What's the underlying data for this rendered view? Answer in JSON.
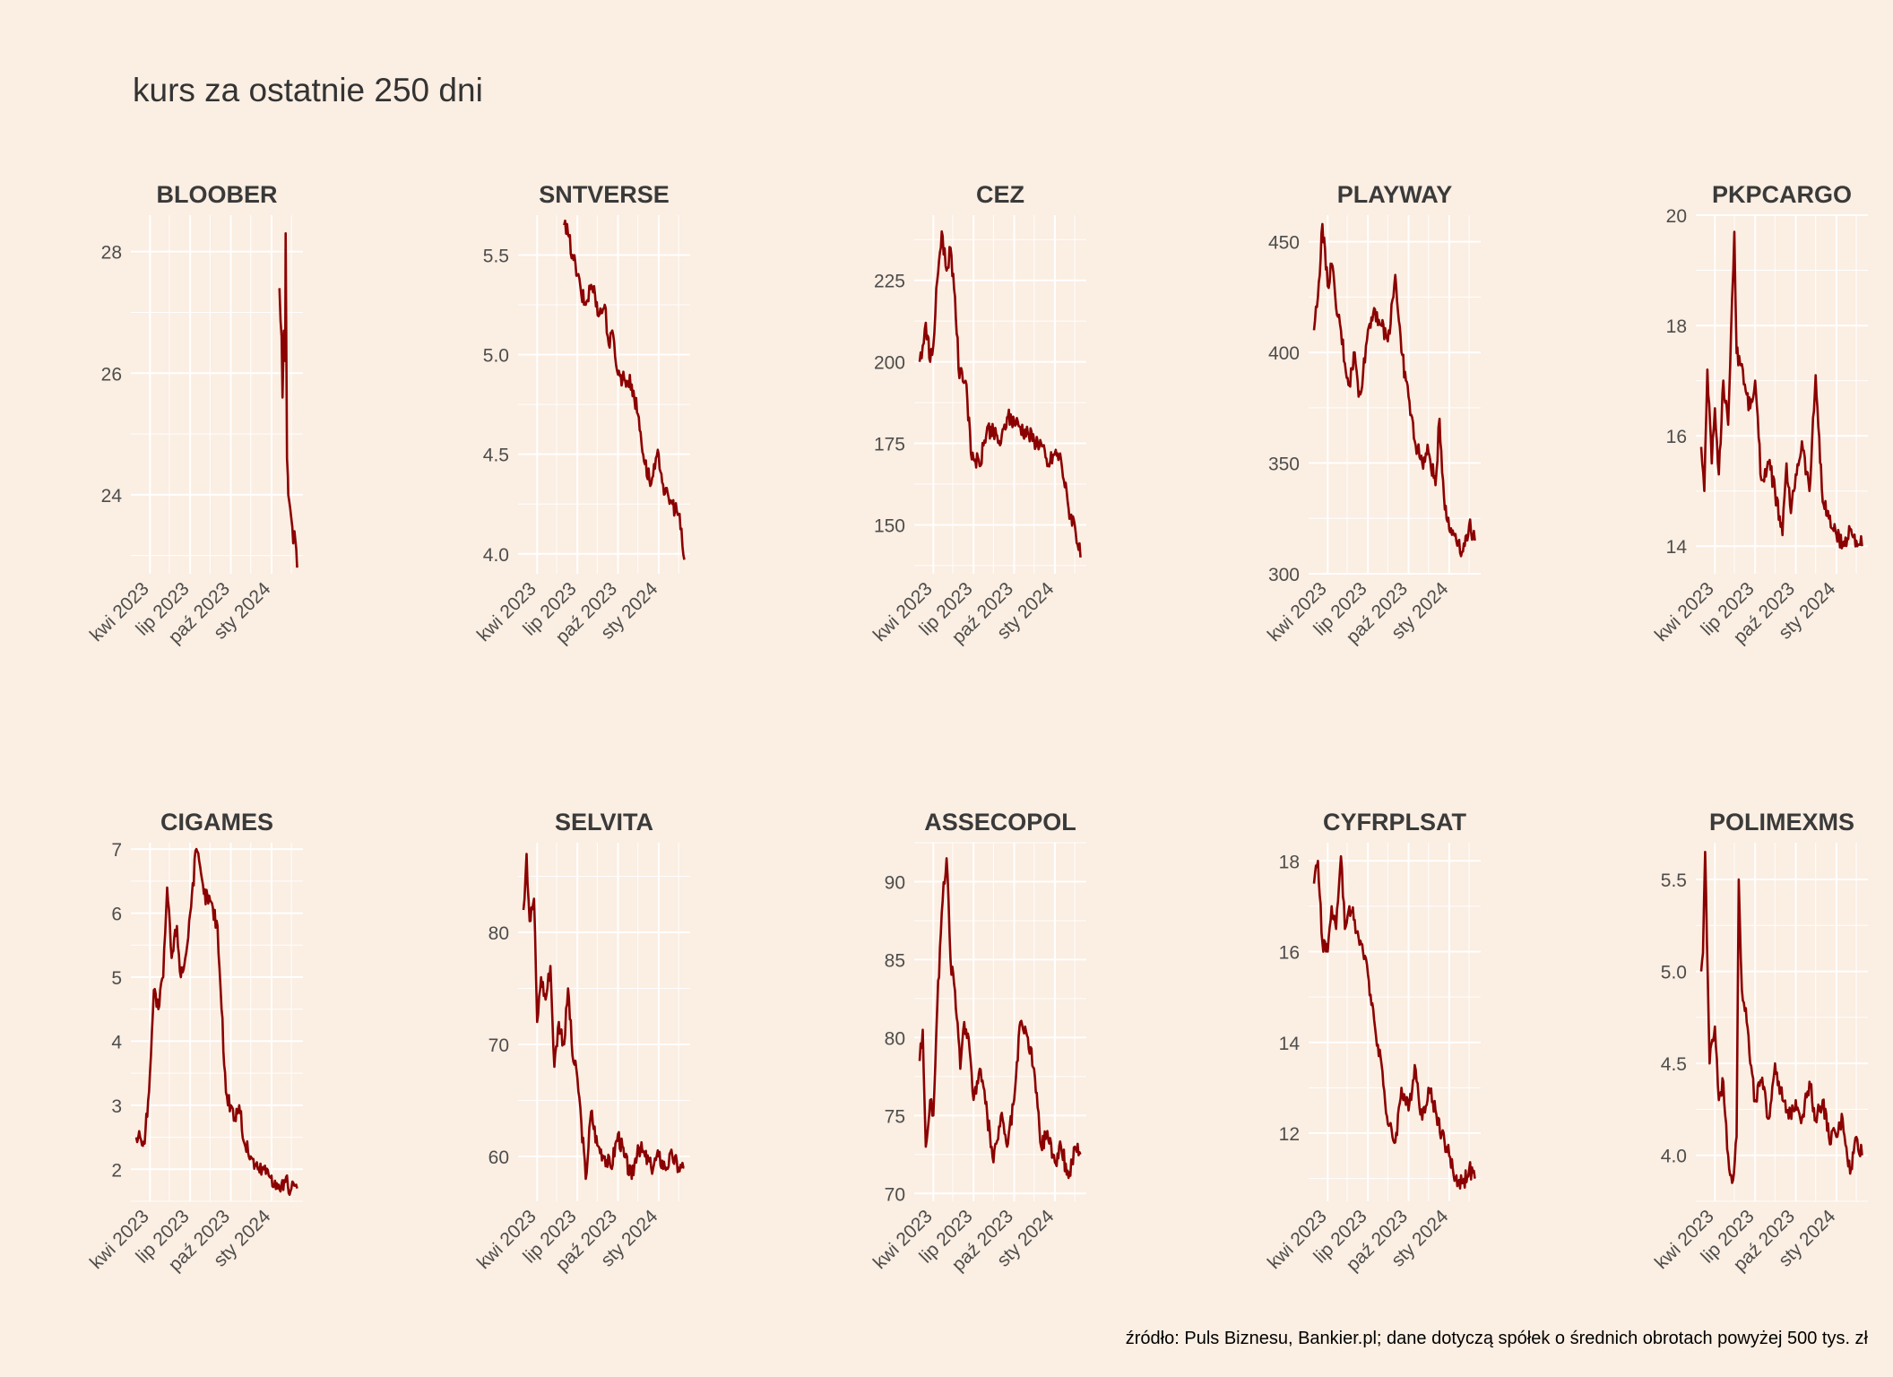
{
  "title": "kurs za ostatnie 250 dni",
  "caption": "źródło: Puls Biznesu, Bankier.pl; dane dotyczą spółek o średnich obrotach powyżej 500 tys. zł",
  "colors": {
    "background": "#FBEEE2",
    "grid": "#FFFFFF",
    "line": "#8B0000",
    "text": "#4D4D4D"
  },
  "chart_data": [
    {
      "type": "line",
      "title": "BLOOBER",
      "x_ticks": [
        "kwi 2023",
        "lip 2023",
        "paź 2023",
        "sty 2024"
      ],
      "y_ticks": [
        24,
        26,
        28
      ],
      "ylim": [
        22.7,
        28.6
      ],
      "x_range": [
        "2023-03-01",
        "2024-02-29"
      ],
      "series": [
        {
          "x": [
            "2024-01-19",
            "2024-01-24",
            "2024-01-26",
            "2024-01-29",
            "2024-02-01",
            "2024-02-02",
            "2024-02-05",
            "2024-02-07",
            "2024-02-08",
            "2024-02-12",
            "2024-02-15",
            "2024-02-19",
            "2024-02-22",
            "2024-02-28"
          ],
          "y": [
            27.4,
            26.6,
            25.6,
            26.7,
            26.2,
            28.3,
            24.6,
            24.3,
            24.0,
            23.8,
            23.6,
            23.2,
            23.4,
            22.8
          ]
        }
      ]
    },
    {
      "type": "line",
      "title": "SNTVERSE",
      "x_ticks": [
        "kwi 2023",
        "lip 2023",
        "paź 2023",
        "sty 2024"
      ],
      "y_ticks": [
        4.0,
        4.5,
        5.0,
        5.5
      ],
      "ylim": [
        3.9,
        5.7
      ],
      "x_range": [
        "2023-03-01",
        "2024-02-29"
      ],
      "series": [
        {
          "x": [
            "2023-06-01",
            "2023-06-10",
            "2023-06-20",
            "2023-07-01",
            "2023-07-10",
            "2023-07-20",
            "2023-08-01",
            "2023-08-10",
            "2023-08-20",
            "2023-09-01",
            "2023-09-10",
            "2023-09-20",
            "2023-10-01",
            "2023-10-15",
            "2023-11-01",
            "2023-11-15",
            "2023-12-01",
            "2023-12-15",
            "2024-01-01",
            "2024-01-15",
            "2024-02-01",
            "2024-02-15",
            "2024-02-28"
          ],
          "y": [
            5.65,
            5.6,
            5.5,
            5.4,
            5.3,
            5.25,
            5.35,
            5.3,
            5.2,
            5.25,
            5.05,
            5.1,
            4.9,
            4.88,
            4.85,
            4.7,
            4.45,
            4.35,
            4.5,
            4.3,
            4.25,
            4.2,
            3.97
          ]
        }
      ]
    },
    {
      "type": "line",
      "title": "CEZ",
      "x_ticks": [
        "kwi 2023",
        "lip 2023",
        "paź 2023",
        "sty 2024"
      ],
      "y_ticks": [
        150,
        175,
        200,
        225
      ],
      "ylim": [
        135,
        245
      ],
      "x_range": [
        "2023-03-01",
        "2024-02-29"
      ],
      "series": [
        {
          "x": [
            "2023-03-01",
            "2023-03-08",
            "2023-03-15",
            "2023-03-25",
            "2023-04-01",
            "2023-04-10",
            "2023-04-20",
            "2023-05-01",
            "2023-05-10",
            "2023-05-20",
            "2023-05-30",
            "2023-06-05",
            "2023-06-15",
            "2023-06-25",
            "2023-07-05",
            "2023-07-15",
            "2023-08-01",
            "2023-08-15",
            "2023-09-01",
            "2023-09-15",
            "2023-10-01",
            "2023-10-15",
            "2023-11-01",
            "2023-11-15",
            "2023-12-01",
            "2023-12-15",
            "2024-01-01",
            "2024-01-15",
            "2024-02-01",
            "2024-02-15",
            "2024-02-28"
          ],
          "y": [
            200,
            205,
            212,
            200,
            205,
            225,
            240,
            228,
            235,
            220,
            195,
            197,
            193,
            172,
            170,
            168,
            180,
            178,
            175,
            183,
            182,
            180,
            178,
            176,
            175,
            168,
            172,
            170,
            155,
            150,
            140
          ]
        }
      ]
    },
    {
      "type": "line",
      "title": "PLAYWAY",
      "x_ticks": [
        "kwi 2023",
        "lip 2023",
        "paź 2023",
        "sty 2024"
      ],
      "y_ticks": [
        300,
        350,
        400,
        450
      ],
      "ylim": [
        300,
        462
      ],
      "x_range": [
        "2023-03-01",
        "2024-02-29"
      ],
      "series": [
        {
          "x": [
            "2023-03-01",
            "2023-03-10",
            "2023-03-20",
            "2023-04-01",
            "2023-04-10",
            "2023-04-20",
            "2023-05-01",
            "2023-05-10",
            "2023-05-20",
            "2023-06-01",
            "2023-06-10",
            "2023-06-20",
            "2023-07-01",
            "2023-07-15",
            "2023-08-01",
            "2023-08-15",
            "2023-09-01",
            "2023-09-15",
            "2023-10-01",
            "2023-10-15",
            "2023-11-01",
            "2023-11-15",
            "2023-12-01",
            "2023-12-10",
            "2023-12-20",
            "2024-01-01",
            "2024-01-15",
            "2024-02-01",
            "2024-02-15",
            "2024-02-28"
          ],
          "y": [
            410,
            425,
            458,
            430,
            440,
            420,
            410,
            395,
            385,
            400,
            380,
            390,
            410,
            420,
            412,
            405,
            435,
            400,
            380,
            360,
            350,
            355,
            340,
            370,
            335,
            320,
            318,
            310,
            322,
            315
          ]
        }
      ]
    },
    {
      "type": "line",
      "title": "PKPCARGO",
      "x_ticks": [
        "kwi 2023",
        "lip 2023",
        "paź 2023",
        "sty 2024"
      ],
      "y_ticks": [
        14,
        16,
        18,
        20
      ],
      "ylim": [
        13.5,
        20
      ],
      "x_range": [
        "2023-03-01",
        "2024-02-29"
      ],
      "series": [
        {
          "x": [
            "2023-03-01",
            "2023-03-08",
            "2023-03-15",
            "2023-03-25",
            "2023-04-01",
            "2023-04-10",
            "2023-04-20",
            "2023-05-01",
            "2023-05-10",
            "2023-05-15",
            "2023-05-20",
            "2023-06-01",
            "2023-06-10",
            "2023-06-20",
            "2023-07-01",
            "2023-07-15",
            "2023-08-01",
            "2023-08-15",
            "2023-09-01",
            "2023-09-10",
            "2023-09-20",
            "2023-10-01",
            "2023-10-15",
            "2023-11-01",
            "2023-11-15",
            "2023-12-01",
            "2023-12-15",
            "2024-01-01",
            "2024-01-15",
            "2024-02-01",
            "2024-02-15",
            "2024-02-28"
          ],
          "y": [
            15.8,
            15.0,
            17.2,
            15.5,
            16.5,
            15.3,
            17.0,
            16.2,
            18.5,
            19.7,
            17.5,
            17.3,
            16.8,
            16.5,
            17.0,
            15.2,
            15.5,
            15.0,
            14.2,
            15.5,
            14.6,
            15.3,
            15.9,
            15.0,
            17.1,
            14.8,
            14.5,
            14.2,
            14.0,
            14.3,
            14.1,
            14.0
          ]
        }
      ]
    },
    {
      "type": "line",
      "title": "CIGAMES",
      "x_ticks": [
        "kwi 2023",
        "lip 2023",
        "paź 2023",
        "sty 2024"
      ],
      "y_ticks": [
        2,
        3,
        4,
        5,
        6,
        7
      ],
      "ylim": [
        1.5,
        7.1
      ],
      "x_range": [
        "2023-03-01",
        "2024-02-29"
      ],
      "series": [
        {
          "x": [
            "2023-03-01",
            "2023-03-10",
            "2023-03-20",
            "2023-04-01",
            "2023-04-10",
            "2023-04-20",
            "2023-05-01",
            "2023-05-10",
            "2023-05-20",
            "2023-06-01",
            "2023-06-10",
            "2023-06-20",
            "2023-07-01",
            "2023-07-15",
            "2023-08-01",
            "2023-08-15",
            "2023-09-01",
            "2023-09-10",
            "2023-09-20",
            "2023-10-01",
            "2023-10-10",
            "2023-10-20",
            "2023-11-01",
            "2023-11-15",
            "2023-12-01",
            "2023-12-15",
            "2024-01-01",
            "2024-01-15",
            "2024-02-01",
            "2024-02-15",
            "2024-02-28"
          ],
          "y": [
            2.5,
            2.5,
            2.4,
            3.5,
            4.8,
            4.5,
            5.0,
            6.4,
            5.3,
            5.8,
            5.0,
            5.3,
            6.0,
            7.0,
            6.3,
            6.2,
            5.8,
            4.5,
            3.2,
            3.0,
            2.8,
            3.0,
            2.4,
            2.2,
            2.0,
            2.0,
            1.9,
            1.7,
            1.8,
            1.7,
            1.7
          ]
        }
      ]
    },
    {
      "type": "line",
      "title": "SELVITA",
      "x_ticks": [
        "kwi 2023",
        "lip 2023",
        "paź 2023",
        "sty 2024"
      ],
      "y_ticks": [
        60,
        70,
        80
      ],
      "ylim": [
        56,
        88
      ],
      "x_range": [
        "2023-03-01",
        "2024-02-29"
      ],
      "series": [
        {
          "x": [
            "2023-03-01",
            "2023-03-08",
            "2023-03-15",
            "2023-03-25",
            "2023-04-01",
            "2023-04-10",
            "2023-04-20",
            "2023-05-01",
            "2023-05-10",
            "2023-05-20",
            "2023-06-01",
            "2023-06-10",
            "2023-06-20",
            "2023-07-01",
            "2023-07-10",
            "2023-07-20",
            "2023-08-01",
            "2023-08-15",
            "2023-09-01",
            "2023-09-15",
            "2023-10-01",
            "2023-10-15",
            "2023-11-01",
            "2023-11-15",
            "2023-12-01",
            "2023-12-15",
            "2024-01-01",
            "2024-01-15",
            "2024-02-01",
            "2024-02-15",
            "2024-02-28"
          ],
          "y": [
            82,
            87,
            81,
            83,
            72,
            76,
            74,
            77,
            68,
            72,
            70,
            75,
            69,
            67,
            63,
            58,
            64,
            61,
            60,
            59,
            62,
            60,
            58,
            61,
            60,
            59,
            60,
            59,
            60,
            59,
            59
          ]
        }
      ]
    },
    {
      "type": "line",
      "title": "ASSECOPOL",
      "x_ticks": [
        "kwi 2023",
        "lip 2023",
        "paź 2023",
        "sty 2024"
      ],
      "y_ticks": [
        70,
        75,
        80,
        85,
        90
      ],
      "ylim": [
        69.5,
        92.5
      ],
      "x_range": [
        "2023-03-01",
        "2024-02-29"
      ],
      "series": [
        {
          "x": [
            "2023-03-01",
            "2023-03-08",
            "2023-03-15",
            "2023-03-25",
            "2023-04-01",
            "2023-04-10",
            "2023-04-20",
            "2023-05-01",
            "2023-05-10",
            "2023-05-20",
            "2023-06-01",
            "2023-06-10",
            "2023-06-20",
            "2023-07-01",
            "2023-07-15",
            "2023-08-01",
            "2023-08-15",
            "2023-09-01",
            "2023-09-15",
            "2023-10-01",
            "2023-10-15",
            "2023-11-01",
            "2023-11-15",
            "2023-12-01",
            "2023-12-15",
            "2024-01-01",
            "2024-01-15",
            "2024-02-01",
            "2024-02-15",
            "2024-02-28"
          ],
          "y": [
            78.5,
            80.5,
            73,
            76,
            75,
            82,
            88,
            91.5,
            85,
            83,
            78,
            81,
            80,
            76,
            78,
            75,
            72,
            75,
            73,
            76,
            81,
            80,
            78,
            73,
            74,
            72,
            73,
            71,
            73,
            72.5
          ]
        }
      ]
    },
    {
      "type": "line",
      "title": "CYFRPLSAT",
      "x_ticks": [
        "kwi 2023",
        "lip 2023",
        "paź 2023",
        "sty 2024"
      ],
      "y_ticks": [
        12,
        14,
        16,
        18
      ],
      "ylim": [
        10.5,
        18.4
      ],
      "x_range": [
        "2023-03-01",
        "2024-02-29"
      ],
      "series": [
        {
          "x": [
            "2023-03-01",
            "2023-03-10",
            "2023-03-20",
            "2023-04-01",
            "2023-04-10",
            "2023-04-20",
            "2023-05-01",
            "2023-05-10",
            "2023-05-20",
            "2023-06-01",
            "2023-06-10",
            "2023-06-20",
            "2023-07-01",
            "2023-07-15",
            "2023-08-01",
            "2023-08-15",
            "2023-09-01",
            "2023-09-15",
            "2023-10-01",
            "2023-10-15",
            "2023-11-01",
            "2023-11-15",
            "2023-12-01",
            "2023-12-15",
            "2024-01-01",
            "2024-01-15",
            "2024-02-01",
            "2024-02-15",
            "2024-02-28"
          ],
          "y": [
            17.5,
            18.0,
            16.2,
            16.0,
            17.0,
            16.5,
            18.1,
            16.5,
            17.0,
            16.7,
            16.3,
            16.0,
            15.5,
            14.5,
            13.5,
            12.2,
            11.8,
            13.0,
            12.5,
            13.5,
            12.3,
            13.0,
            12.5,
            12.0,
            11.5,
            11.0,
            10.9,
            11.2,
            11.0
          ]
        }
      ]
    },
    {
      "type": "line",
      "title": "POLIMEXMS",
      "x_ticks": [
        "kwi 2023",
        "lip 2023",
        "paź 2023",
        "sty 2024"
      ],
      "y_ticks": [
        4.0,
        4.5,
        5.0,
        5.5
      ],
      "ylim": [
        3.75,
        5.7
      ],
      "x_range": [
        "2023-03-01",
        "2024-02-29"
      ],
      "series": [
        {
          "x": [
            "2023-03-01",
            "2023-03-05",
            "2023-03-10",
            "2023-03-20",
            "2023-04-01",
            "2023-04-10",
            "2023-04-20",
            "2023-05-01",
            "2023-05-10",
            "2023-05-20",
            "2023-05-25",
            "2023-06-01",
            "2023-06-10",
            "2023-06-20",
            "2023-07-01",
            "2023-07-15",
            "2023-08-01",
            "2023-08-15",
            "2023-09-01",
            "2023-09-15",
            "2023-10-01",
            "2023-10-15",
            "2023-11-01",
            "2023-11-15",
            "2023-12-01",
            "2023-12-15",
            "2024-01-01",
            "2024-01-15",
            "2024-02-01",
            "2024-02-15",
            "2024-02-28"
          ],
          "y": [
            5.0,
            5.1,
            5.65,
            4.5,
            4.7,
            4.3,
            4.4,
            4.0,
            3.85,
            4.1,
            5.5,
            4.9,
            4.8,
            4.5,
            4.3,
            4.4,
            4.2,
            4.5,
            4.3,
            4.2,
            4.3,
            4.2,
            4.4,
            4.2,
            4.3,
            4.1,
            4.1,
            4.2,
            3.9,
            4.1,
            4.0
          ]
        }
      ]
    }
  ]
}
